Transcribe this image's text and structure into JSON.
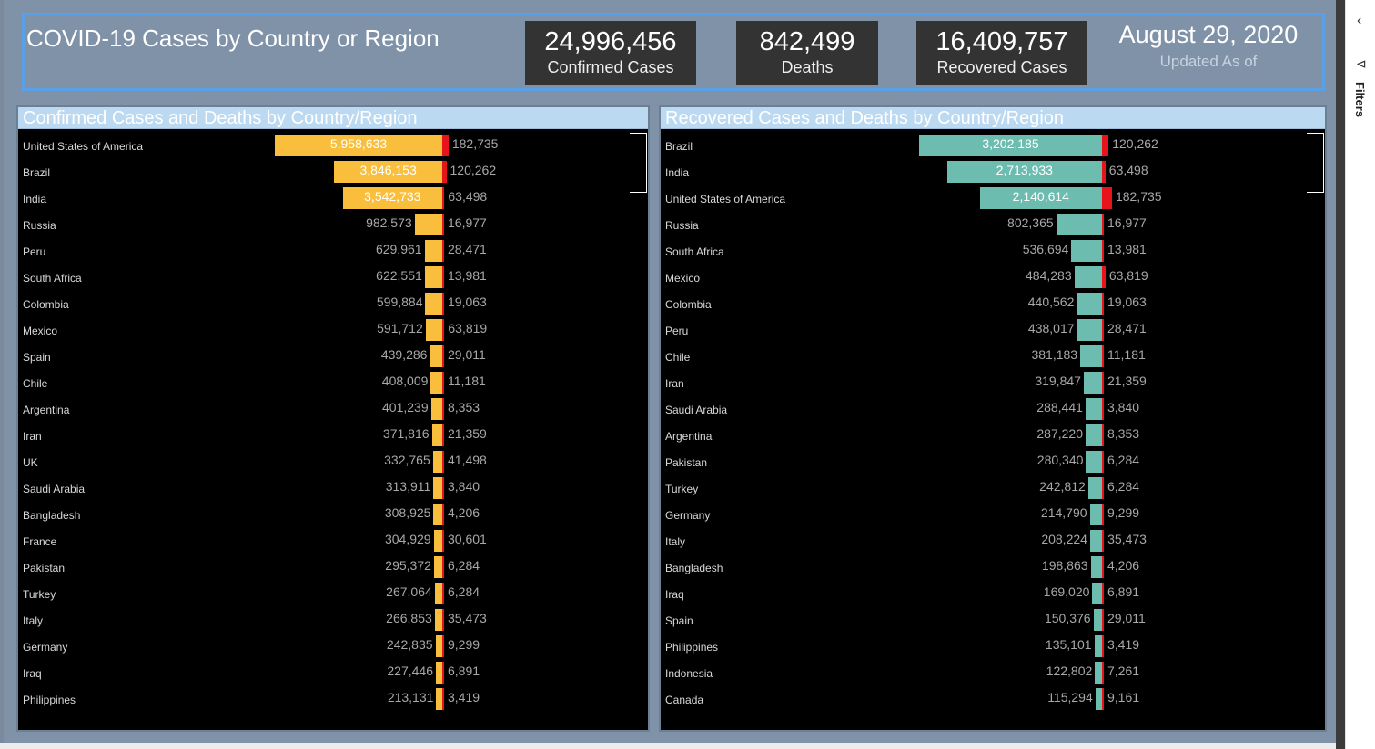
{
  "header": {
    "title": "COVID-19 Cases by Country or Region",
    "kpis": [
      {
        "value": "24,996,456",
        "label": "Confirmed Cases"
      },
      {
        "value": "842,499",
        "label": "Deaths"
      },
      {
        "value": "16,409,757",
        "label": "Recovered Cases"
      }
    ],
    "date": "August 29, 2020",
    "updated_label": "Updated As of"
  },
  "sidepane": {
    "filters_label": "Filters",
    "collapse_icon": "chevron-left-icon",
    "filter_icon": "filter-icon"
  },
  "colors": {
    "confirmed": "#f9bf3c",
    "recovered": "#6cbcb0",
    "deaths": "#e8141c"
  },
  "chart_data": [
    {
      "type": "bar",
      "title": "Confirmed Cases and Deaths by Country/Region",
      "categories": [
        "United States of America",
        "Brazil",
        "India",
        "Russia",
        "Peru",
        "South Africa",
        "Colombia",
        "Mexico",
        "Spain",
        "Chile",
        "Argentina",
        "Iran",
        "UK",
        "Saudi Arabia",
        "Bangladesh",
        "France",
        "Pakistan",
        "Turkey",
        "Italy",
        "Germany",
        "Iraq",
        "Philippines"
      ],
      "series": [
        {
          "values": [
            5958633,
            3846153,
            3542733,
            982573,
            629961,
            622551,
            599884,
            591712,
            439286,
            408009,
            401239,
            371816,
            332765,
            313911,
            308925,
            304929,
            295372,
            267064,
            266853,
            242835,
            227446,
            213131
          ]
        },
        {
          "values": [
            182735,
            120262,
            63498,
            16977,
            28471,
            13981,
            19063,
            63819,
            29011,
            11181,
            8353,
            21359,
            41498,
            3840,
            4206,
            30601,
            6284,
            6284,
            35473,
            9299,
            6891,
            3419
          ]
        }
      ]
    },
    {
      "type": "bar",
      "title": "Recovered Cases and Deaths by Country/Region",
      "categories": [
        "Brazil",
        "India",
        "United States of America",
        "Russia",
        "South Africa",
        "Mexico",
        "Colombia",
        "Peru",
        "Chile",
        "Iran",
        "Saudi Arabia",
        "Argentina",
        "Pakistan",
        "Turkey",
        "Germany",
        "Italy",
        "Bangladesh",
        "Iraq",
        "Spain",
        "Philippines",
        "Indonesia",
        "Canada"
      ],
      "series": [
        {
          "values": [
            3202185,
            2713933,
            2140614,
            802365,
            536694,
            484283,
            440562,
            438017,
            381183,
            319847,
            288441,
            287220,
            280340,
            242812,
            214790,
            208224,
            198863,
            169020,
            150376,
            135101,
            122802,
            115294
          ]
        },
        {
          "values": [
            120262,
            63498,
            182735,
            16977,
            13981,
            63819,
            19063,
            28471,
            11181,
            21359,
            3840,
            8353,
            6284,
            6284,
            9299,
            35473,
            4206,
            6891,
            29011,
            3419,
            7261,
            9161
          ]
        }
      ]
    }
  ]
}
